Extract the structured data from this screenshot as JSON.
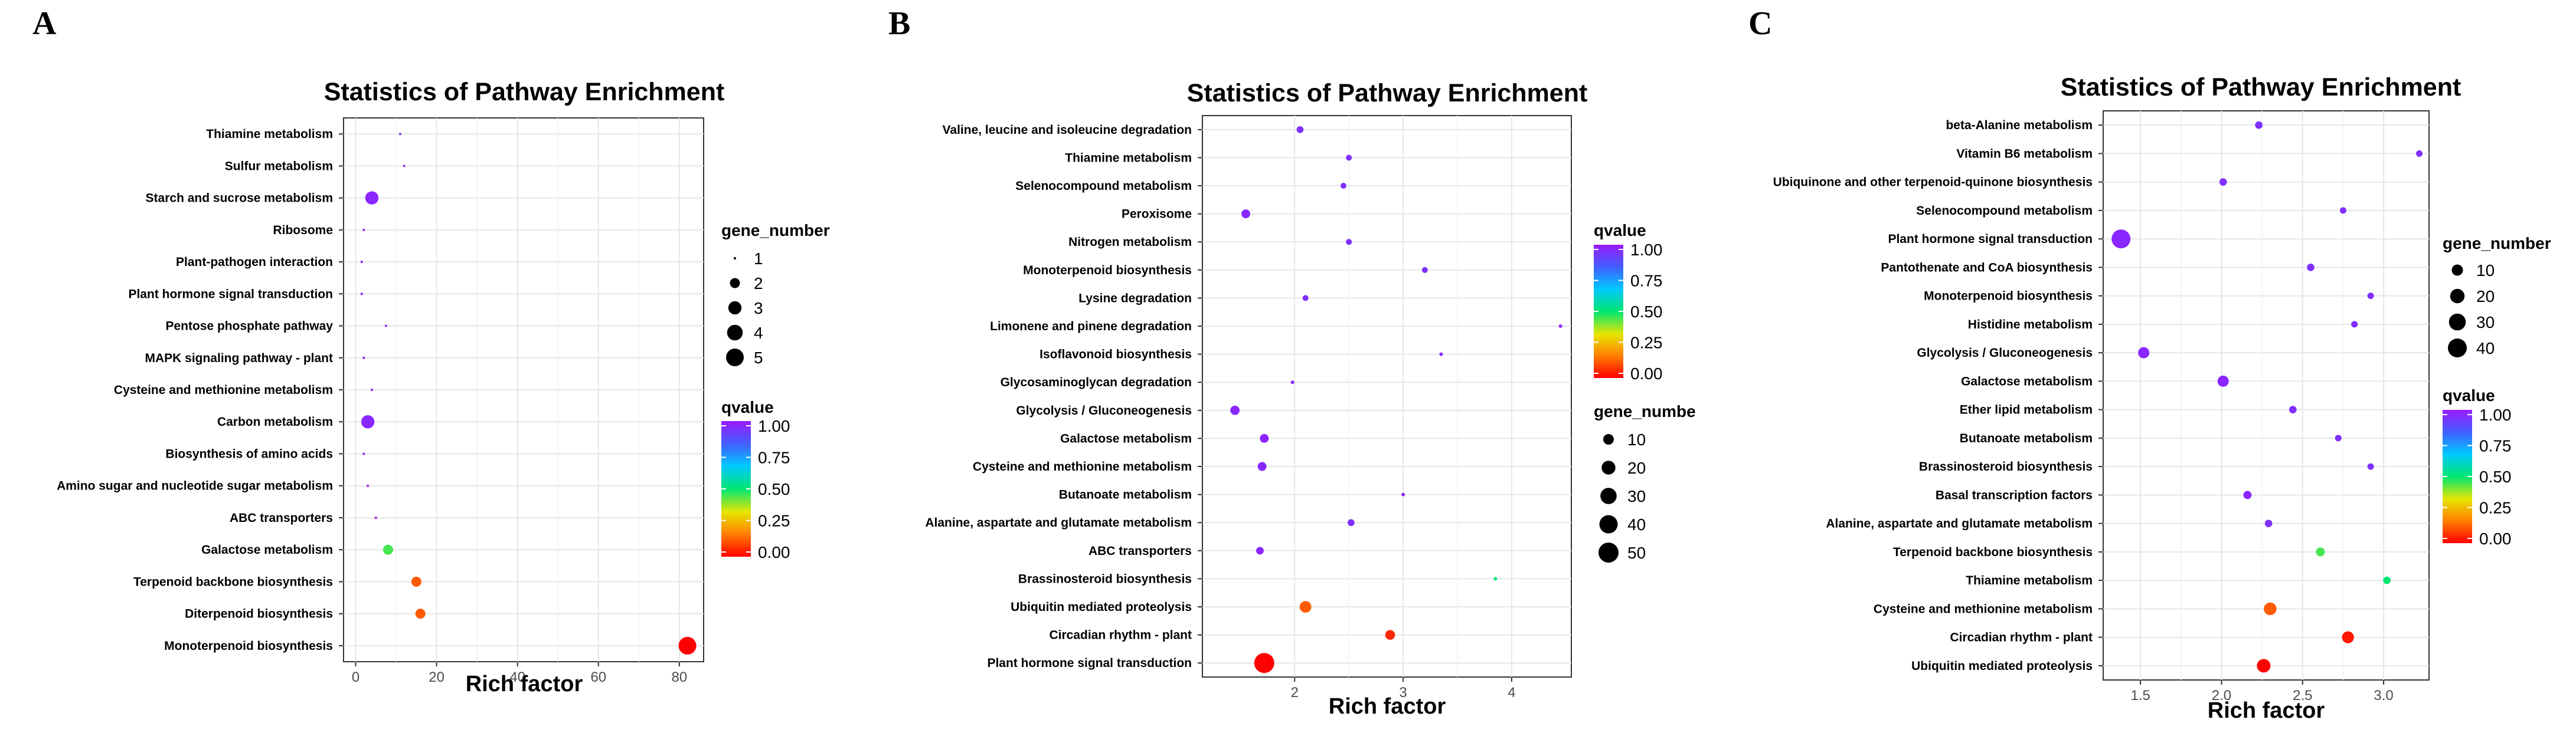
{
  "figure": {
    "panel_labels": [
      "A",
      "B",
      "C"
    ]
  },
  "chart_data": [
    {
      "type": "scatter",
      "panel": "A",
      "title": "Statistics of Pathway Enrichment",
      "xlabel": "Rich factor",
      "ylabel": "",
      "xlim": [
        -3,
        86
      ],
      "xticks": [
        0,
        20,
        40,
        60,
        80
      ],
      "categories": [
        "Thiamine metabolism",
        "Sulfur metabolism",
        "Starch and sucrose metabolism",
        "Ribosome",
        "Plant-pathogen interaction",
        "Plant hormone signal transduction",
        "Pentose phosphate pathway",
        "MAPK signaling pathway - plant",
        "Cysteine and methionine metabolism",
        "Carbon metabolism",
        "Biosynthesis of amino acids",
        "Amino sugar and nucleotide sugar metabolism",
        "ABC transporters",
        "Galactose metabolism",
        "Terpenoid backbone biosynthesis",
        "Diterpenoid biosynthesis",
        "Monoterpenoid biosynthesis"
      ],
      "points": [
        {
          "pathway": "Thiamine metabolism",
          "rich_factor": 11,
          "gene_number": 1,
          "qvalue": 0.95
        },
        {
          "pathway": "Sulfur metabolism",
          "rich_factor": 12,
          "gene_number": 1,
          "qvalue": 0.95
        },
        {
          "pathway": "Starch and sucrose metabolism",
          "rich_factor": 4,
          "gene_number": 3,
          "qvalue": 0.97
        },
        {
          "pathway": "Ribosome",
          "rich_factor": 2,
          "gene_number": 1,
          "qvalue": 1.0
        },
        {
          "pathway": "Plant-pathogen interaction",
          "rich_factor": 1.5,
          "gene_number": 1,
          "qvalue": 1.0
        },
        {
          "pathway": "Plant hormone signal transduction",
          "rich_factor": 1.5,
          "gene_number": 1,
          "qvalue": 1.0
        },
        {
          "pathway": "Pentose phosphate pathway",
          "rich_factor": 7.5,
          "gene_number": 1,
          "qvalue": 0.97
        },
        {
          "pathway": "MAPK signaling pathway - plant",
          "rich_factor": 2,
          "gene_number": 1,
          "qvalue": 1.0
        },
        {
          "pathway": "Cysteine and methionine metabolism",
          "rich_factor": 4,
          "gene_number": 1,
          "qvalue": 1.0
        },
        {
          "pathway": "Carbon metabolism",
          "rich_factor": 3,
          "gene_number": 3,
          "qvalue": 0.97
        },
        {
          "pathway": "Biosynthesis of amino acids",
          "rich_factor": 2,
          "gene_number": 1,
          "qvalue": 1.0
        },
        {
          "pathway": "Amino sugar and nucleotide sugar metabolism",
          "rich_factor": 3,
          "gene_number": 1,
          "qvalue": 1.0
        },
        {
          "pathway": "ABC transporters",
          "rich_factor": 5,
          "gene_number": 1,
          "qvalue": 1.0
        },
        {
          "pathway": "Galactose metabolism",
          "rich_factor": 8,
          "gene_number": 2,
          "qvalue": 0.45
        },
        {
          "pathway": "Terpenoid backbone biosynthesis",
          "rich_factor": 15,
          "gene_number": 2,
          "qvalue": 0.12
        },
        {
          "pathway": "Diterpenoid biosynthesis",
          "rich_factor": 16,
          "gene_number": 2,
          "qvalue": 0.12
        },
        {
          "pathway": "Monoterpenoid biosynthesis",
          "rich_factor": 82,
          "gene_number": 5,
          "qvalue": 0.0
        }
      ],
      "legend_size": {
        "title": "gene_number",
        "values": [
          1,
          2,
          3,
          4,
          5
        ],
        "labels": [
          "1",
          "2",
          "3",
          "4",
          "5"
        ]
      },
      "legend_color": {
        "title": "qvalue",
        "labels": [
          "1.00",
          "0.75",
          "0.50",
          "0.25",
          "0.00"
        ]
      }
    },
    {
      "type": "scatter",
      "panel": "B",
      "title": "Statistics of Pathway Enrichment",
      "xlabel": "Rich factor",
      "ylabel": "",
      "xlim": [
        1.15,
        4.55
      ],
      "xticks": [
        2,
        3,
        4
      ],
      "categories": [
        "Valine, leucine and isoleucine degradation",
        "Thiamine metabolism",
        "Selenocompound metabolism",
        "Peroxisome",
        "Nitrogen metabolism",
        "Monoterpenoid biosynthesis",
        "Lysine degradation",
        "Limonene and pinene degradation",
        "Isoflavonoid biosynthesis",
        "Glycosaminoglycan degradation",
        "Glycolysis / Gluconeogenesis",
        "Galactose metabolism",
        "Cysteine and methionine metabolism",
        "Butanoate metabolism",
        "Alanine, aspartate and glutamate metabolism",
        "ABC transporters",
        "Brassinosteroid biosynthesis",
        "Ubiquitin mediated proteolysis",
        "Circadian rhythm - plant",
        "Plant hormone signal transduction"
      ],
      "points": [
        {
          "pathway": "Valine, leucine and isoleucine degradation",
          "rich_factor": 2.05,
          "gene_number": 3,
          "qvalue": 0.95
        },
        {
          "pathway": "Thiamine metabolism",
          "rich_factor": 2.5,
          "gene_number": 2,
          "qvalue": 0.95
        },
        {
          "pathway": "Selenocompound metabolism",
          "rich_factor": 2.45,
          "gene_number": 2,
          "qvalue": 0.95
        },
        {
          "pathway": "Peroxisome",
          "rich_factor": 1.55,
          "gene_number": 6,
          "qvalue": 0.97
        },
        {
          "pathway": "Nitrogen metabolism",
          "rich_factor": 2.5,
          "gene_number": 2,
          "qvalue": 0.95
        },
        {
          "pathway": "Monoterpenoid biosynthesis",
          "rich_factor": 3.2,
          "gene_number": 2,
          "qvalue": 0.95
        },
        {
          "pathway": "Lysine degradation",
          "rich_factor": 2.1,
          "gene_number": 2,
          "qvalue": 0.95
        },
        {
          "pathway": "Limonene and pinene degradation",
          "rich_factor": 4.45,
          "gene_number": 1,
          "qvalue": 0.97
        },
        {
          "pathway": "Isoflavonoid biosynthesis",
          "rich_factor": 3.35,
          "gene_number": 1,
          "qvalue": 0.97
        },
        {
          "pathway": "Glycosaminoglycan degradation",
          "rich_factor": 1.98,
          "gene_number": 1,
          "qvalue": 0.97
        },
        {
          "pathway": "Glycolysis / Gluconeogenesis",
          "rich_factor": 1.45,
          "gene_number": 7,
          "qvalue": 0.97
        },
        {
          "pathway": "Galactose metabolism",
          "rich_factor": 1.72,
          "gene_number": 6,
          "qvalue": 0.97
        },
        {
          "pathway": "Cysteine and methionine metabolism",
          "rich_factor": 1.7,
          "gene_number": 6,
          "qvalue": 0.97
        },
        {
          "pathway": "Butanoate metabolism",
          "rich_factor": 3.0,
          "gene_number": 1,
          "qvalue": 0.97
        },
        {
          "pathway": "Alanine, aspartate and glutamate metabolism",
          "rich_factor": 2.52,
          "gene_number": 3,
          "qvalue": 0.95
        },
        {
          "pathway": "ABC transporters",
          "rich_factor": 1.68,
          "gene_number": 4,
          "qvalue": 0.97
        },
        {
          "pathway": "Brassinosteroid biosynthesis",
          "rich_factor": 3.85,
          "gene_number": 1,
          "qvalue": 0.5
        },
        {
          "pathway": "Ubiquitin mediated proteolysis",
          "rich_factor": 2.1,
          "gene_number": 13,
          "qvalue": 0.12
        },
        {
          "pathway": "Circadian rhythm - plant",
          "rich_factor": 2.88,
          "gene_number": 8,
          "qvalue": 0.05
        },
        {
          "pathway": "Plant hormone signal transduction",
          "rich_factor": 1.72,
          "gene_number": 50,
          "qvalue": 0.0
        }
      ],
      "legend_color": {
        "title": "qvalue",
        "labels": [
          "1.00",
          "0.75",
          "0.50",
          "0.25",
          "0.00"
        ]
      },
      "legend_size": {
        "title": "gene_numbe",
        "values": [
          10,
          20,
          30,
          40,
          50
        ],
        "labels": [
          "10",
          "20",
          "30",
          "40",
          "50"
        ]
      }
    },
    {
      "type": "scatter",
      "panel": "C",
      "title": "Statistics of Pathway Enrichment",
      "xlabel": "Rich factor",
      "ylabel": "",
      "xlim": [
        1.27,
        3.28
      ],
      "xticks": [
        1.5,
        2.0,
        2.5,
        3.0
      ],
      "xtick_labels": [
        "1.5",
        "2.0",
        "2.5",
        "3.0"
      ],
      "categories": [
        "beta-Alanine metabolism",
        "Vitamin B6 metabolism",
        "Ubiquinone and other terpenoid-quinone biosynthesis",
        "Selenocompound metabolism",
        "Plant hormone signal transduction",
        "Pantothenate and CoA biosynthesis",
        "Monoterpenoid biosynthesis",
        "Histidine metabolism",
        "Glycolysis / Gluconeogenesis",
        "Galactose metabolism",
        "Ether lipid metabolism",
        "Butanoate metabolism",
        "Brassinosteroid biosynthesis",
        "Basal transcription factors",
        "Alanine, aspartate and glutamate metabolism",
        "Terpenoid backbone biosynthesis",
        "Thiamine metabolism",
        "Cysteine and methionine metabolism",
        "Circadian rhythm - plant",
        "Ubiquitin mediated proteolysis"
      ],
      "points": [
        {
          "pathway": "beta-Alanine metabolism",
          "rich_factor": 2.23,
          "gene_number": 3,
          "qvalue": 0.95
        },
        {
          "pathway": "Vitamin B6 metabolism",
          "rich_factor": 3.22,
          "gene_number": 2,
          "qvalue": 0.95
        },
        {
          "pathway": "Ubiquinone and other terpenoid-quinone biosynthesis",
          "rich_factor": 2.01,
          "gene_number": 3,
          "qvalue": 0.95
        },
        {
          "pathway": "Selenocompound metabolism",
          "rich_factor": 2.75,
          "gene_number": 2,
          "qvalue": 0.95
        },
        {
          "pathway": "Plant hormone signal transduction",
          "rich_factor": 1.38,
          "gene_number": 45,
          "qvalue": 0.97
        },
        {
          "pathway": "Pantothenate and CoA biosynthesis",
          "rich_factor": 2.55,
          "gene_number": 3,
          "qvalue": 0.95
        },
        {
          "pathway": "Monoterpenoid biosynthesis",
          "rich_factor": 2.92,
          "gene_number": 2,
          "qvalue": 0.95
        },
        {
          "pathway": "Histidine metabolism",
          "rich_factor": 2.82,
          "gene_number": 2,
          "qvalue": 0.95
        },
        {
          "pathway": "Glycolysis / Gluconeogenesis",
          "rich_factor": 1.52,
          "gene_number": 10,
          "qvalue": 0.97
        },
        {
          "pathway": "Galactose metabolism",
          "rich_factor": 2.01,
          "gene_number": 10,
          "qvalue": 0.97
        },
        {
          "pathway": "Ether lipid metabolism",
          "rich_factor": 2.44,
          "gene_number": 3,
          "qvalue": 0.95
        },
        {
          "pathway": "Butanoate metabolism",
          "rich_factor": 2.72,
          "gene_number": 2,
          "qvalue": 0.95
        },
        {
          "pathway": "Brassinosteroid biosynthesis",
          "rich_factor": 2.92,
          "gene_number": 2,
          "qvalue": 0.95
        },
        {
          "pathway": "Basal transcription factors",
          "rich_factor": 2.16,
          "gene_number": 4,
          "qvalue": 0.97
        },
        {
          "pathway": "Alanine, aspartate and glutamate metabolism",
          "rich_factor": 2.29,
          "gene_number": 3,
          "qvalue": 0.95
        },
        {
          "pathway": "Terpenoid backbone biosynthesis",
          "rich_factor": 2.61,
          "gene_number": 5,
          "qvalue": 0.45
        },
        {
          "pathway": "Thiamine metabolism",
          "rich_factor": 3.02,
          "gene_number": 3,
          "qvalue": 0.5
        },
        {
          "pathway": "Cysteine and methionine metabolism",
          "rich_factor": 2.3,
          "gene_number": 14,
          "qvalue": 0.12
        },
        {
          "pathway": "Circadian rhythm - plant",
          "rich_factor": 2.78,
          "gene_number": 12,
          "qvalue": 0.03
        },
        {
          "pathway": "Ubiquitin mediated proteolysis",
          "rich_factor": 2.26,
          "gene_number": 17,
          "qvalue": 0.0
        }
      ],
      "legend_size": {
        "title": "gene_number",
        "values": [
          10,
          20,
          30,
          40
        ],
        "labels": [
          "10",
          "20",
          "30",
          "40"
        ]
      },
      "legend_color": {
        "title": "qvalue",
        "labels": [
          "1.00",
          "0.75",
          "0.50",
          "0.25",
          "0.00"
        ]
      }
    }
  ]
}
